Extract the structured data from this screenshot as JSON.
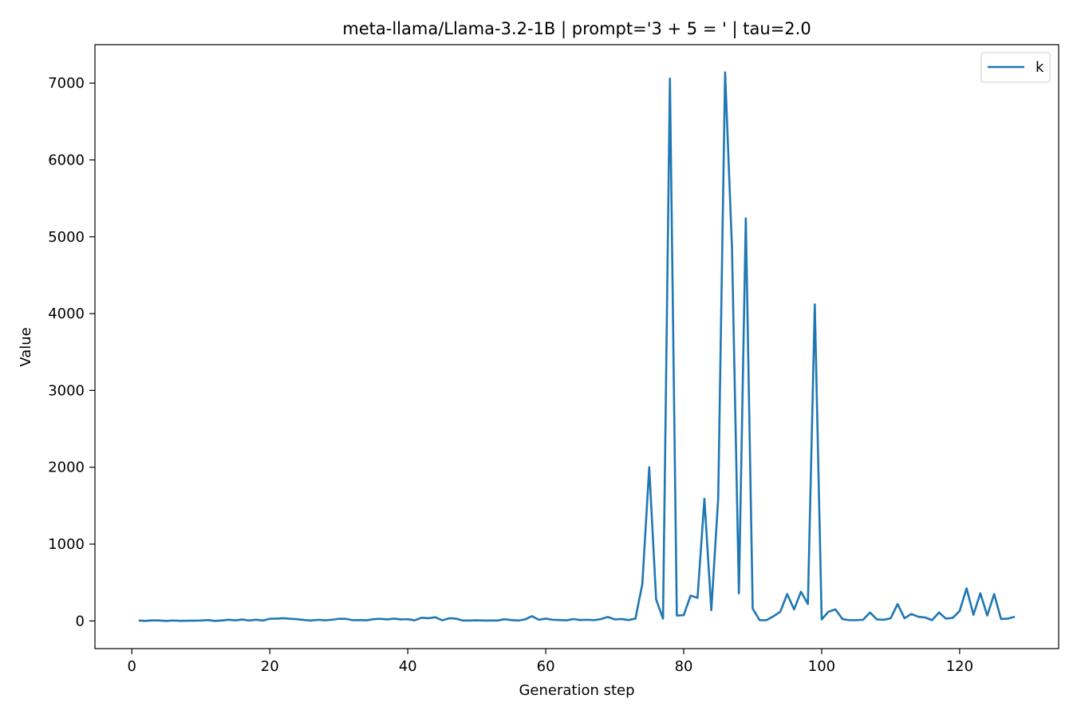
{
  "chart_data": {
    "type": "line",
    "title": "meta-llama/Llama-3.2-1B | prompt='3 + 5 = ' | tau=2.0",
    "xlabel": "Generation step",
    "ylabel": "Value",
    "xlim": [
      -5.35,
      134.35
    ],
    "ylim": [
      -360,
      7500
    ],
    "xticks": [
      0,
      20,
      40,
      60,
      80,
      100,
      120
    ],
    "yticks": [
      0,
      1000,
      2000,
      3000,
      4000,
      5000,
      6000,
      7000
    ],
    "grid": false,
    "legend_position": "upper right",
    "series": [
      {
        "name": "k",
        "color": "#1f77b4",
        "x": [
          1,
          2,
          3,
          4,
          5,
          6,
          7,
          8,
          9,
          10,
          11,
          12,
          13,
          14,
          15,
          16,
          17,
          18,
          19,
          20,
          21,
          22,
          23,
          24,
          25,
          26,
          27,
          28,
          29,
          30,
          31,
          32,
          33,
          34,
          35,
          36,
          37,
          38,
          39,
          40,
          41,
          42,
          43,
          44,
          45,
          46,
          47,
          48,
          49,
          50,
          51,
          52,
          53,
          54,
          55,
          56,
          57,
          58,
          59,
          60,
          61,
          62,
          63,
          64,
          65,
          66,
          67,
          68,
          69,
          70,
          71,
          72,
          73,
          74,
          75,
          76,
          77,
          78,
          79,
          80,
          81,
          82,
          83,
          84,
          85,
          86,
          87,
          88,
          89,
          90,
          91,
          92,
          93,
          94,
          95,
          96,
          97,
          98,
          99,
          100,
          101,
          102,
          103,
          104,
          105,
          106,
          107,
          108,
          109,
          110,
          111,
          112,
          113,
          114,
          115,
          116,
          117,
          118,
          119,
          120,
          121,
          122,
          123,
          124,
          125,
          126,
          127,
          128
        ],
        "y": [
          5,
          0,
          8,
          5,
          0,
          6,
          2,
          3,
          4,
          5,
          12,
          0,
          5,
          16,
          8,
          18,
          6,
          16,
          5,
          28,
          30,
          35,
          28,
          22,
          12,
          5,
          15,
          8,
          15,
          28,
          27,
          10,
          12,
          8,
          22,
          28,
          20,
          30,
          20,
          22,
          8,
          42,
          35,
          48,
          8,
          35,
          30,
          5,
          5,
          8,
          5,
          5,
          5,
          22,
          12,
          5,
          20,
          62,
          15,
          30,
          15,
          12,
          8,
          24,
          12,
          15,
          10,
          24,
          52,
          20,
          25,
          12,
          30,
          480,
          2000,
          280,
          30,
          7060,
          70,
          75,
          330,
          300,
          1590,
          140,
          1600,
          7140,
          4850,
          360,
          5240,
          160,
          10,
          10,
          60,
          120,
          350,
          150,
          380,
          220,
          4120,
          20,
          120,
          150,
          25,
          10,
          10,
          15,
          110,
          20,
          15,
          35,
          220,
          35,
          90,
          55,
          45,
          10,
          110,
          30,
          40,
          130,
          425,
          80,
          360,
          70,
          350,
          25,
          30,
          55
        ]
      }
    ]
  }
}
